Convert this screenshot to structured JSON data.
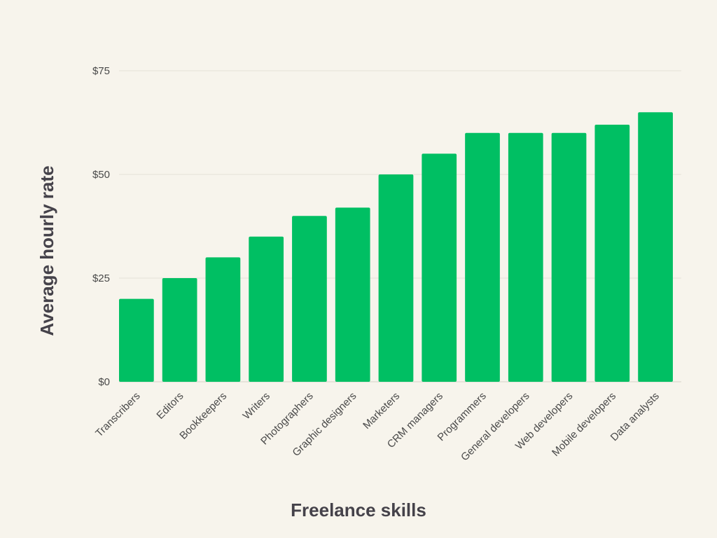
{
  "chart_data": {
    "type": "bar",
    "title": "",
    "xlabel": "Freelance skills",
    "ylabel": "Average hourly rate",
    "categories": [
      "Transcribers",
      "Editors",
      "Bookkeepers",
      "Writers",
      "Photographers",
      "Graphic designers",
      "Marketers",
      "CRM managers",
      "Programmers",
      "General developers",
      "Web developers",
      "Mobile developers",
      "Data analysts"
    ],
    "values": [
      20,
      25,
      30,
      35,
      40,
      42,
      50,
      55,
      60,
      60,
      60,
      62,
      65
    ],
    "ylim": [
      0,
      75
    ],
    "yticks": [
      0,
      25,
      50,
      75
    ],
    "ytick_labels": [
      "$0",
      "$25",
      "$50",
      "$75"
    ],
    "grid": true,
    "legend": "none",
    "bar_color": "#00bf63"
  }
}
